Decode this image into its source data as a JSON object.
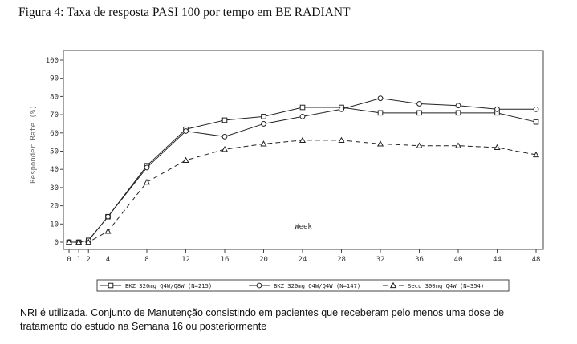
{
  "figure_title": "Figura 4: Taxa de resposta PASI 100 por tempo em BE RADIANT",
  "footnote": "NRI é utilizada. Conjunto de Manutenção consistindo em pacientes que receberam pelo menos uma dose de tratamento do estudo na Semana 16 ou posteriormente",
  "chart_data": {
    "type": "line",
    "title": "",
    "xlabel": "Week",
    "ylabel": "Responder Rate (%)",
    "xlim": [
      0,
      48
    ],
    "ylim": [
      0,
      100
    ],
    "x_ticks": [
      0,
      1,
      2,
      4,
      8,
      12,
      16,
      20,
      24,
      28,
      32,
      36,
      40,
      44,
      48
    ],
    "y_ticks": [
      0,
      10,
      20,
      30,
      40,
      50,
      60,
      70,
      80,
      90,
      100
    ],
    "grid": false,
    "legend_position": "bottom",
    "series": [
      {
        "name": "BKZ 320mg Q4W/Q8W (N=215)",
        "marker": "square",
        "line_style": "solid",
        "x": [
          0,
          1,
          2,
          4,
          8,
          12,
          16,
          20,
          24,
          28,
          32,
          36,
          40,
          44,
          48
        ],
        "values": [
          0,
          0,
          1,
          14,
          42,
          62,
          67,
          69,
          74,
          74,
          71,
          71,
          71,
          71,
          66
        ]
      },
      {
        "name": "BKZ 320mg Q4W/Q4W (N=147)",
        "marker": "circle",
        "line_style": "solid",
        "x": [
          0,
          1,
          2,
          4,
          8,
          12,
          16,
          20,
          24,
          28,
          32,
          36,
          40,
          44,
          48
        ],
        "values": [
          0,
          0,
          1,
          14,
          41,
          61,
          58,
          65,
          69,
          73,
          79,
          76,
          75,
          73,
          73
        ]
      },
      {
        "name": "Secu 300mg Q4W (N=354)",
        "marker": "triangle",
        "line_style": "dashed",
        "x": [
          0,
          1,
          2,
          4,
          8,
          12,
          16,
          20,
          24,
          28,
          32,
          36,
          40,
          44,
          48
        ],
        "values": [
          0,
          0,
          0,
          6,
          33,
          45,
          51,
          54,
          56,
          56,
          54,
          53,
          53,
          52,
          48
        ]
      }
    ]
  }
}
